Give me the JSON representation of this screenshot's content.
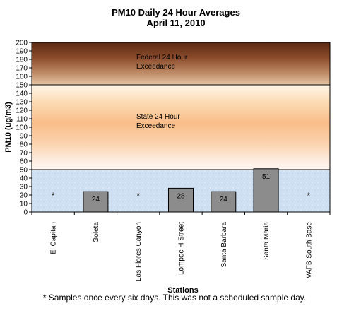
{
  "chart_data": {
    "type": "bar",
    "title": "PM10 Daily 24 Hour Averages",
    "subtitle": "April 11, 2010",
    "xlabel": "Stations",
    "ylabel": "PM10 (ug/m3)",
    "ylim": [
      0,
      200
    ],
    "yticks": [
      0,
      10,
      20,
      30,
      40,
      50,
      60,
      70,
      80,
      90,
      100,
      110,
      120,
      130,
      140,
      150,
      160,
      170,
      180,
      190,
      200
    ],
    "grid": false,
    "categories": [
      "El Capitan",
      "Goleta",
      "Las Flores Canyon",
      "Lompoc H Street",
      "Santa Barbara",
      "Santa Maria",
      "VAFB South Base"
    ],
    "values": [
      null,
      24,
      null,
      28,
      24,
      51,
      null
    ],
    "data_labels": [
      "*",
      "24",
      "*",
      "28",
      "24",
      "51",
      "*"
    ],
    "bar_color": "#8c8c8c",
    "bands": [
      {
        "from": 150,
        "to": 200,
        "label_line1": "Federal 24 Hour",
        "label_line2": "Exceedance",
        "label_at": 180
      },
      {
        "from": 50,
        "to": 150,
        "label_line1": "State 24 Hour",
        "label_line2": "Exceedance",
        "label_at": 110
      },
      {
        "from": 0,
        "to": 50
      }
    ]
  },
  "footnote": "* Samples once every six days.  This was not a scheduled sample day."
}
